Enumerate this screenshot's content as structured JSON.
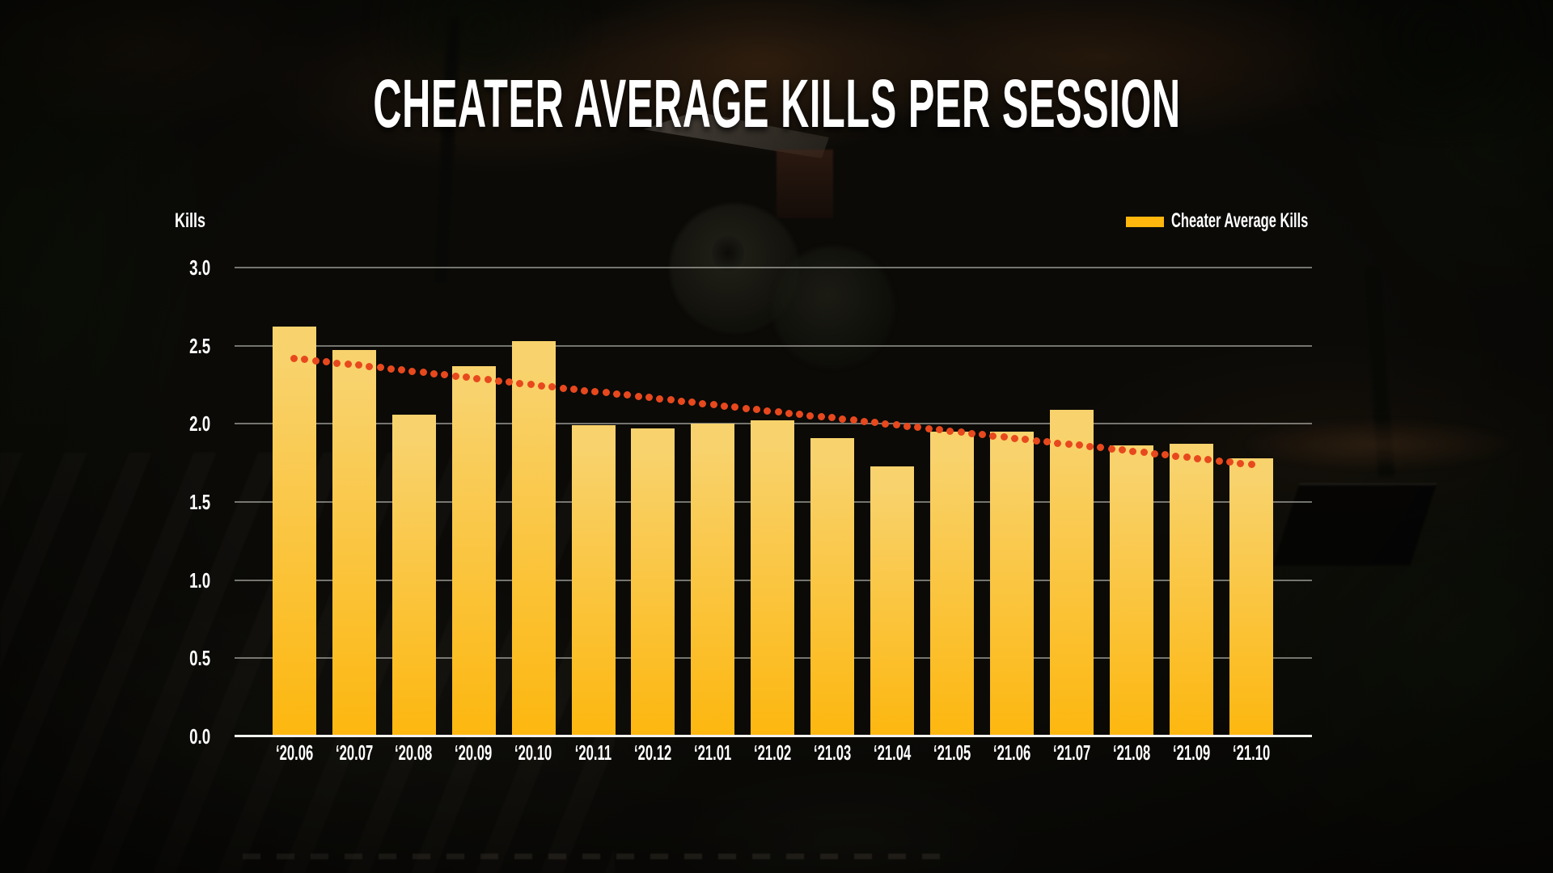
{
  "chart_data": {
    "type": "bar",
    "title": "CHEATER AVERAGE KILLS PER SESSION",
    "ylabel": "Kills",
    "legend_label": "Cheater Average Kills",
    "legend_position": "top-right",
    "ylim": [
      0,
      3.0
    ],
    "ytick_step": 0.5,
    "yticks": [
      "3.0",
      "2.5",
      "2.0",
      "1.5",
      "1.0",
      "0.5",
      "0.0"
    ],
    "categories": [
      "‘20.06",
      "‘20.07",
      "‘20.08",
      "‘20.09",
      "‘20.10",
      "‘20.11",
      "‘20.12",
      "‘21.01",
      "‘21.02",
      "‘21.03",
      "‘21.04",
      "‘21.05",
      "‘21.06",
      "‘21.07",
      "‘21.08",
      "‘21.09",
      "‘21.10"
    ],
    "values": [
      2.62,
      2.47,
      2.06,
      2.37,
      2.53,
      1.99,
      1.97,
      2.0,
      2.02,
      1.91,
      1.73,
      1.95,
      1.95,
      2.09,
      1.86,
      1.87,
      1.78
    ],
    "trendline": {
      "style": "dotted",
      "start_value": 2.42,
      "end_value": 1.74,
      "color": "#E8481D"
    },
    "grid": "on",
    "colors": {
      "bar_gradient_top": "#F8D26C",
      "bar_gradient_bottom": "#FDB70F",
      "legend_swatch": "#FFB60D",
      "axis_line": "#F2F2EE",
      "gridline": "#CDCDC6",
      "text": "#FFFFFF"
    }
  }
}
